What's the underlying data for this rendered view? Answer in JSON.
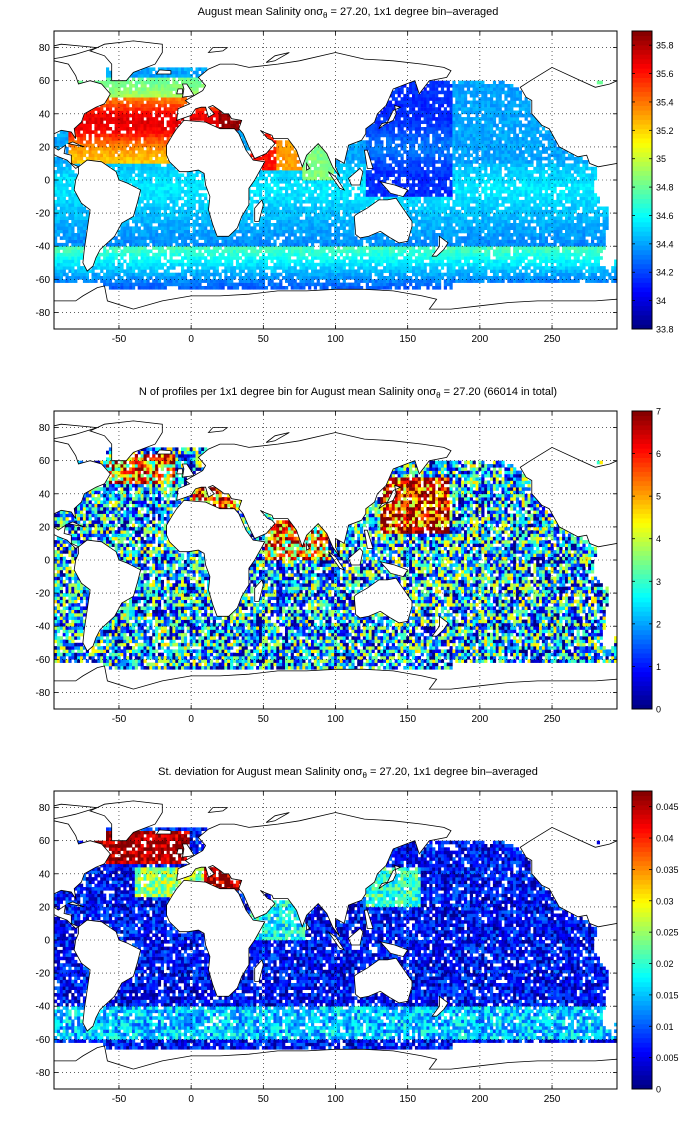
{
  "chart_data": [
    {
      "type": "heatmap",
      "title_prefix": "August mean Salinity on",
      "title_sigma": "σ",
      "title_sub": "θ",
      "title_suffix": " = 27.20, 1x1 degree bin–averaged",
      "xticks": [
        -50,
        0,
        50,
        100,
        150,
        200,
        250
      ],
      "yticks": [
        80,
        60,
        40,
        20,
        0,
        -20,
        -40,
        -60,
        -80
      ],
      "xlim": [
        -95,
        295
      ],
      "ylim": [
        -90,
        90
      ],
      "grid": true,
      "colorbar": {
        "range": [
          33.8,
          35.9
        ],
        "ticks": [
          35.8,
          35.6,
          35.4,
          35.2,
          35,
          34.8,
          34.6,
          34.4,
          34.2,
          34,
          33.8
        ],
        "colormap": "jet"
      }
    },
    {
      "type": "heatmap",
      "title_prefix": "N of profiles per 1x1 degree bin for August mean Salinity on",
      "title_sigma": "σ",
      "title_sub": "θ",
      "title_suffix": " = 27.20 (66014 in total)",
      "xticks": [
        -50,
        0,
        50,
        100,
        150,
        200,
        250
      ],
      "yticks": [
        80,
        60,
        40,
        20,
        0,
        -20,
        -40,
        -60,
        -80
      ],
      "xlim": [
        -95,
        295
      ],
      "ylim": [
        -90,
        90
      ],
      "grid": true,
      "colorbar": {
        "range": [
          0,
          7
        ],
        "ticks": [
          7,
          6,
          5,
          4,
          3,
          2,
          1,
          0
        ],
        "colormap": "jet"
      }
    },
    {
      "type": "heatmap",
      "title_prefix": "St. deviation for August mean Salinity on",
      "title_sigma": "σ",
      "title_sub": "θ",
      "title_suffix": " = 27.20, 1x1 degree bin–averaged",
      "xticks": [
        -50,
        0,
        50,
        100,
        150,
        200,
        250
      ],
      "yticks": [
        80,
        60,
        40,
        20,
        0,
        -20,
        -40,
        -60,
        -80
      ],
      "xlim": [
        -95,
        295
      ],
      "ylim": [
        -90,
        90
      ],
      "grid": true,
      "colorbar": {
        "range": [
          0,
          0.0475
        ],
        "ticks": [
          0.045,
          0.04,
          0.035,
          0.03,
          0.025,
          0.02,
          0.015,
          0.01,
          0.005,
          0
        ],
        "colormap": "jet"
      }
    }
  ]
}
